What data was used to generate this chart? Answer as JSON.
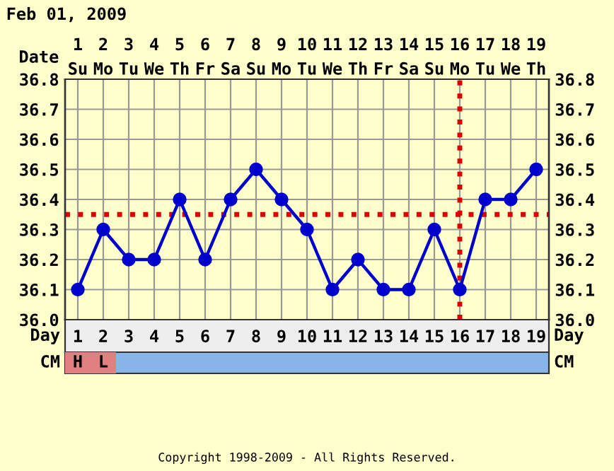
{
  "chart_data": {
    "type": "line",
    "title": "Feb 01, 2009",
    "x": [
      1,
      2,
      3,
      4,
      5,
      6,
      7,
      8,
      9,
      10,
      11,
      12,
      13,
      14,
      15,
      16,
      17,
      18,
      19
    ],
    "series": [
      {
        "color": "#0000cc",
        "values": [
          36.1,
          36.3,
          36.2,
          36.2,
          36.4,
          36.2,
          36.4,
          36.5,
          36.4,
          36.3,
          36.1,
          36.2,
          36.1,
          36.1,
          36.3,
          36.1,
          36.4,
          36.4,
          36.5
        ]
      }
    ],
    "xlim": [
      0.5,
      19.5
    ],
    "xticks": [
      1,
      2,
      3,
      4,
      5,
      6,
      7,
      8,
      9,
      10,
      11,
      12,
      13,
      14,
      15,
      16,
      17,
      18,
      19
    ],
    "xlabel": "Day",
    "x2label": "Date",
    "x2lim": [
      0.5,
      19.5
    ],
    "x2ticks": [
      1,
      2,
      3,
      4,
      5,
      6,
      7,
      8,
      9,
      10,
      11,
      12,
      13,
      14,
      15,
      16,
      17,
      18,
      19
    ],
    "ylim": [
      36.0,
      36.8
    ],
    "yticks": [
      {
        "value": 36.0,
        "label": "36.0"
      },
      36.1,
      36.2,
      36.3,
      36.4,
      36.5,
      36.6,
      36.7,
      36.8
    ],
    "y2lim": [
      36.0,
      36.8
    ],
    "y2ticks": [
      {
        "value": 36.0,
        "label": "36.0"
      },
      36.1,
      36.2,
      36.3,
      36.4,
      36.5,
      36.6,
      36.7,
      36.8
    ],
    "ref_lines": [
      {
        "axis": "y",
        "value": 36.35,
        "color": "#dd0000",
        "line_style": "dotted"
      },
      {
        "axis": "x",
        "value": 16,
        "color": "#dd0000",
        "line_style": "dotted"
      }
    ],
    "annotations": [
      "Su",
      "Mo",
      "Tu",
      "We",
      "Th",
      "Fr",
      "Sa",
      "Su",
      "Mo",
      "Tu",
      "We",
      "Th",
      "Fr",
      "Sa",
      "Su",
      "Mo",
      "Tu",
      "We",
      "Th",
      "CM",
      "H",
      "L",
      "Copyright 1998-2009 - All Rights Reserved."
    ],
    "grid": true,
    "marker": "circle",
    "line_style": "solid"
  }
}
